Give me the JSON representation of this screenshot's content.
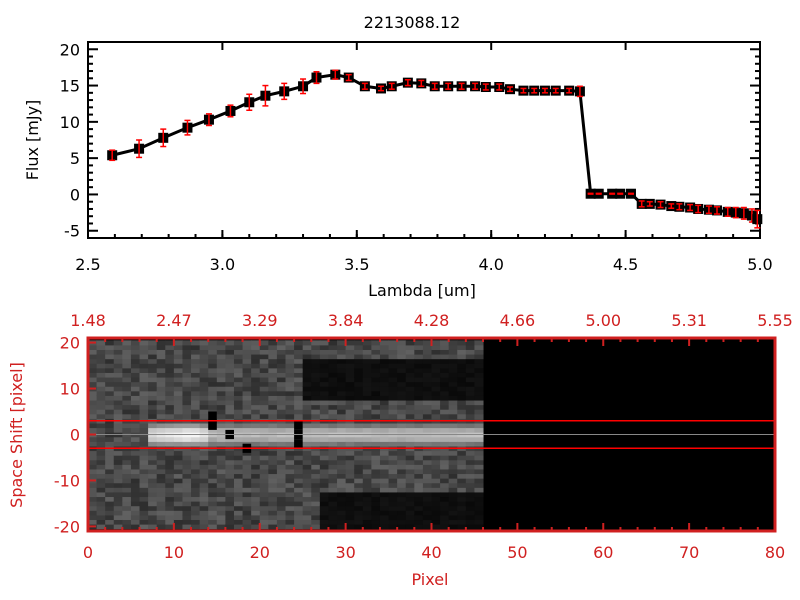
{
  "chart_data": [
    {
      "type": "line",
      "title": "2213088.12",
      "xlabel": "Lambda [um]",
      "ylabel": "Flux [mJy]",
      "xlim": [
        2.5,
        5.0
      ],
      "ylim": [
        -6,
        21
      ],
      "xticks": [
        "2.5",
        "3.0",
        "3.5",
        "4.0",
        "4.5",
        "5.0"
      ],
      "xtick_values": [
        2.5,
        3.0,
        3.5,
        4.0,
        4.5,
        5.0
      ],
      "yticks": [
        "20",
        "15",
        "10",
        "5",
        "0",
        "-5"
      ],
      "ytick_values": [
        20,
        15,
        10,
        5,
        0,
        -5
      ],
      "colors": {
        "line": "#000000",
        "errorbar": "#ff0000"
      },
      "x": [
        2.59,
        2.69,
        2.78,
        2.87,
        2.95,
        3.03,
        3.1,
        3.16,
        3.23,
        3.3,
        3.35,
        3.42,
        3.47,
        3.53,
        3.59,
        3.63,
        3.69,
        3.74,
        3.79,
        3.84,
        3.89,
        3.94,
        3.98,
        4.03,
        4.07,
        4.12,
        4.16,
        4.2,
        4.24,
        4.29,
        4.33,
        4.37,
        4.4,
        4.45,
        4.48,
        4.52,
        4.56,
        4.59,
        4.63,
        4.67,
        4.7,
        4.74,
        4.77,
        4.81,
        4.84,
        4.88,
        4.91,
        4.94,
        4.97,
        4.99
      ],
      "y": [
        5.4,
        6.3,
        7.8,
        9.2,
        10.3,
        11.5,
        12.7,
        13.6,
        14.2,
        14.9,
        16.1,
        16.5,
        16.1,
        14.9,
        14.6,
        14.9,
        15.4,
        15.3,
        14.9,
        14.9,
        14.9,
        14.9,
        14.8,
        14.8,
        14.5,
        14.3,
        14.3,
        14.3,
        14.3,
        14.3,
        14.2,
        0.1,
        0.1,
        0.1,
        0.1,
        0.1,
        -1.3,
        -1.3,
        -1.4,
        -1.6,
        -1.7,
        -1.8,
        -2.0,
        -2.1,
        -2.2,
        -2.4,
        -2.5,
        -2.6,
        -2.9,
        -3.4
      ],
      "yerr": [
        0.7,
        1.2,
        1.2,
        1.0,
        0.8,
        0.8,
        1.1,
        1.4,
        1.1,
        1.0,
        0.8,
        0.6,
        0.4,
        0.4,
        0.3,
        0.4,
        0.4,
        0.4,
        0.4,
        0.4,
        0.4,
        0.4,
        0.4,
        0.4,
        0.3,
        0.3,
        0.3,
        0.3,
        0.3,
        0.3,
        0.7,
        0.05,
        0.05,
        0.05,
        0.05,
        0.05,
        0.4,
        0.3,
        0.4,
        0.3,
        0.4,
        0.4,
        0.5,
        0.5,
        0.5,
        0.6,
        0.7,
        0.8,
        0.9,
        1.2
      ]
    },
    {
      "type": "heatmap",
      "xlabel": "Pixel",
      "ylabel": "Space Shift [pixel]",
      "xlim": [
        0,
        80
      ],
      "ylim": [
        -21,
        21
      ],
      "xticks": [
        "0",
        "10",
        "20",
        "30",
        "40",
        "50",
        "60",
        "70",
        "80"
      ],
      "xtick_values": [
        0,
        10,
        20,
        30,
        40,
        50,
        60,
        70,
        80
      ],
      "yticks": [
        "20",
        "10",
        "0",
        "-10",
        "-20"
      ],
      "ytick_values": [
        20,
        10,
        0,
        -10,
        -20
      ],
      "top_axis_ticks": [
        "1.48",
        "2.47",
        "3.29",
        "3.84",
        "4.28",
        "4.66",
        "5.00",
        "5.31",
        "5.55"
      ],
      "data_extent_pixel": 46,
      "trace_center": 0,
      "extraction_window": [
        -3,
        3
      ],
      "colors": {
        "axis": "#d02020",
        "window_line": "#ff0000",
        "center_line": "#000000"
      },
      "bad_pixels": [
        [
          14,
          4
        ],
        [
          14,
          2
        ],
        [
          16,
          0
        ],
        [
          18,
          -3
        ],
        [
          24,
          2
        ],
        [
          24,
          0
        ],
        [
          24,
          -2
        ]
      ]
    }
  ]
}
